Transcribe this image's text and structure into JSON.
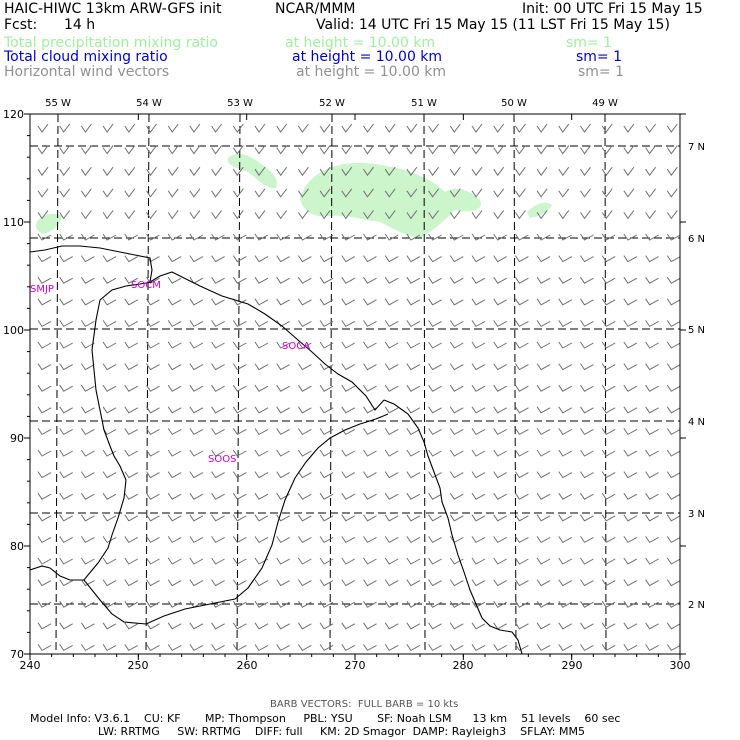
{
  "header": {
    "model": "HAIC-HIWC 13km ARW-GFS init",
    "org": "NCAR/MMM",
    "init": "Init: 00 UTC Fri 15 May 15",
    "fcst_label": "Fcst:",
    "fcst_value": "14 h",
    "valid": "Valid: 14 UTC Fri 15 May 15 (11 LST Fri 15 May 15)"
  },
  "fields": [
    {
      "name": "Total precipitation mixing ratio",
      "height": "at height = 10.00 km",
      "sm": "sm= 1",
      "color": "#a0f0a0"
    },
    {
      "name": "Total cloud mixing ratio",
      "height": "at height = 10.00 km",
      "sm": "sm= 1",
      "color": "#0000c8"
    },
    {
      "name": "Horizontal wind vectors",
      "height": "at height = 10.00 km",
      "sm": "sm= 1",
      "color": "#909090"
    }
  ],
  "map": {
    "x_ticks": [
      "240",
      "250",
      "260",
      "270",
      "280",
      "290",
      "300"
    ],
    "y_ticks": [
      "120",
      "110",
      "100",
      "90",
      "80",
      "70"
    ],
    "lon_labels": [
      "55 W",
      "54 W",
      "53 W",
      "52 W",
      "51 W",
      "50 W",
      "49 W"
    ],
    "lat_labels": [
      "7 N",
      "6 N",
      "5 N",
      "4 N",
      "3 N",
      "2 N"
    ],
    "stations": [
      "SMJP",
      "SOCM",
      "SOCA",
      "SOOS"
    ],
    "precip_color": "#ccf5cc",
    "coast_color": "#000000",
    "station_color": "#cc00cc"
  },
  "footer": {
    "barb": "BARB VECTORS:  FULL BARB = 10 kts",
    "line1": "Model Info: V3.6.1    CU: KF       MP: Thompson     PBL: YSU       SF: Noah LSM      13 km    51 levels    60 sec",
    "line2": "LW: RRTMG     SW: RRTMG    DIFF: full     KM: 2D Smagor  DAMP: Rayleigh3    SFLAY: MM5"
  }
}
